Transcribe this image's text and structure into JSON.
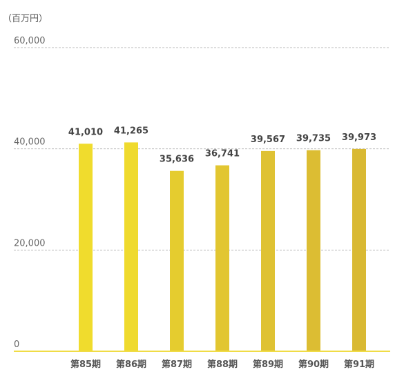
{
  "chart_data": {
    "type": "bar",
    "unit_label": "（百万円）",
    "categories": [
      "第85期",
      "第86期",
      "第87期",
      "第88期",
      "第89期",
      "第90期",
      "第91期"
    ],
    "values": [
      41010,
      41265,
      35636,
      36741,
      39567,
      39735,
      39973
    ],
    "value_labels": [
      "41,010",
      "41,265",
      "35,636",
      "36,741",
      "39,567",
      "39,735",
      "39,973"
    ],
    "yticks": [
      0,
      20000,
      40000,
      60000
    ],
    "ytick_labels": [
      "0",
      "20,000",
      "40,000",
      "60,000"
    ],
    "ylim": [
      0,
      60000
    ],
    "grid": true,
    "legend": "none",
    "bar_colors": [
      "#f0dc2d",
      "#efda2e",
      "#e5cc2f",
      "#e2c631",
      "#dfc233",
      "#dcbd33",
      "#d9b933"
    ],
    "baseline_color": "#f0dc46"
  }
}
